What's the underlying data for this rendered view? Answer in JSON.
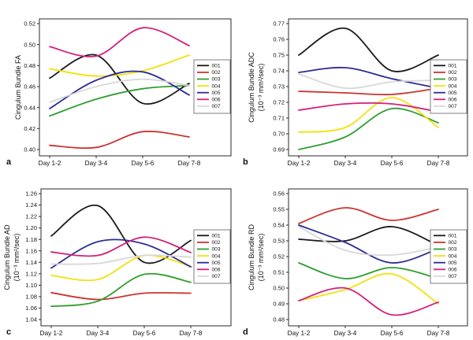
{
  "figure": {
    "background": "#ffffff",
    "frame_color": "#2a2a2a",
    "text_color": "#111111",
    "legend_border_color": "#7f7f7f",
    "legend_fill": "#ffffff"
  },
  "chart_data": [
    {
      "type": "line",
      "panel_letter": "a",
      "ylabel_lines": [
        "Cingulum Bundle FA"
      ],
      "categories": [
        "Day 1-2",
        "Day 3-4",
        "Day 5-6",
        "Day 7-8"
      ],
      "ylim": [
        0.4,
        0.52
      ],
      "ytick_step": 0.02,
      "ytick_decimals": 2,
      "grid": false,
      "legend_position": "right",
      "series": [
        {
          "name": "001",
          "color": "#1a1a1a",
          "values": [
            0.468,
            0.49,
            0.444,
            0.463
          ]
        },
        {
          "name": "002",
          "color": "#cd3232",
          "values": [
            0.404,
            0.402,
            0.417,
            0.412
          ]
        },
        {
          "name": "003",
          "color": "#2f9e2f",
          "values": [
            0.432,
            0.448,
            0.458,
            0.461
          ]
        },
        {
          "name": "004",
          "color": "#f3e10c",
          "values": [
            0.477,
            0.47,
            0.475,
            0.49
          ]
        },
        {
          "name": "005",
          "color": "#2c2c94",
          "values": [
            0.439,
            0.466,
            0.474,
            0.452
          ]
        },
        {
          "name": "006",
          "color": "#d61e7e",
          "values": [
            0.498,
            0.489,
            0.516,
            0.499
          ]
        },
        {
          "name": "007",
          "color": "#d8d8d8",
          "values": [
            0.445,
            0.46,
            0.467,
            0.461
          ]
        }
      ]
    },
    {
      "type": "line",
      "panel_letter": "b",
      "ylabel_lines": [
        "Cingulum Bundle ADC",
        "(10⁻³ mm²/sec)"
      ],
      "categories": [
        "Day 1-2",
        "Day 3-4",
        "Day 5-6",
        "Day 7-8"
      ],
      "ylim": [
        0.69,
        0.77
      ],
      "ytick_step": 0.01,
      "ytick_decimals": 2,
      "grid": false,
      "legend_position": "right",
      "series": [
        {
          "name": "001",
          "color": "#1a1a1a",
          "values": [
            0.75,
            0.767,
            0.74,
            0.75
          ]
        },
        {
          "name": "002",
          "color": "#cd3232",
          "values": [
            0.727,
            0.726,
            0.725,
            0.729
          ]
        },
        {
          "name": "003",
          "color": "#2f9e2f",
          "values": [
            0.69,
            0.698,
            0.716,
            0.707
          ]
        },
        {
          "name": "004",
          "color": "#f3e10c",
          "values": [
            0.701,
            0.704,
            0.723,
            0.704
          ]
        },
        {
          "name": "005",
          "color": "#2c2c94",
          "values": [
            0.739,
            0.742,
            0.735,
            0.729
          ]
        },
        {
          "name": "006",
          "color": "#d61e7e",
          "values": [
            0.715,
            0.719,
            0.719,
            0.714
          ]
        },
        {
          "name": "007",
          "color": "#d8d8d8",
          "values": [
            0.738,
            0.729,
            0.733,
            0.734
          ]
        }
      ]
    },
    {
      "type": "line",
      "panel_letter": "c",
      "ylabel_lines": [
        "Cingulum Bundle AD",
        "(10⁻³ mm²/sec)"
      ],
      "categories": [
        "Day 1-2",
        "Day 3-4",
        "Day 5-6",
        "Day 7-8"
      ],
      "ylim": [
        1.04,
        1.26
      ],
      "ytick_step": 0.02,
      "ytick_decimals": 2,
      "grid": false,
      "legend_position": "right",
      "series": [
        {
          "name": "001",
          "color": "#1a1a1a",
          "values": [
            1.186,
            1.239,
            1.14,
            1.178
          ]
        },
        {
          "name": "002",
          "color": "#cd3232",
          "values": [
            1.087,
            1.075,
            1.086,
            1.086
          ]
        },
        {
          "name": "003",
          "color": "#2f9e2f",
          "values": [
            1.063,
            1.072,
            1.119,
            1.105
          ]
        },
        {
          "name": "004",
          "color": "#f3e10c",
          "values": [
            1.117,
            1.11,
            1.152,
            1.133
          ]
        },
        {
          "name": "005",
          "color": "#2c2c94",
          "values": [
            1.13,
            1.176,
            1.172,
            1.132
          ]
        },
        {
          "name": "006",
          "color": "#d61e7e",
          "values": [
            1.158,
            1.152,
            1.184,
            1.157
          ]
        },
        {
          "name": "007",
          "color": "#d8d8d8",
          "values": [
            1.137,
            1.138,
            1.152,
            1.149
          ]
        }
      ]
    },
    {
      "type": "line",
      "panel_letter": "d",
      "ylabel_lines": [
        "Cingulum Bundle RD",
        "(10⁻³ mm²/sec)"
      ],
      "categories": [
        "Day 1-2",
        "Day 3-4",
        "Day 5-6",
        "Day 7-8"
      ],
      "ylim": [
        0.48,
        0.56
      ],
      "ytick_step": 0.01,
      "ytick_decimals": 2,
      "grid": false,
      "legend_position": "right",
      "series": [
        {
          "name": "001",
          "color": "#1a1a1a",
          "values": [
            0.531,
            0.53,
            0.539,
            0.527
          ]
        },
        {
          "name": "002",
          "color": "#cd3232",
          "values": [
            0.541,
            0.551,
            0.543,
            0.55
          ]
        },
        {
          "name": "003",
          "color": "#2f9e2f",
          "values": [
            0.516,
            0.506,
            0.513,
            0.506
          ]
        },
        {
          "name": "004",
          "color": "#f3e10c",
          "values": [
            0.492,
            0.499,
            0.509,
            0.49
          ]
        },
        {
          "name": "005",
          "color": "#2c2c94",
          "values": [
            0.54,
            0.529,
            0.516,
            0.525
          ]
        },
        {
          "name": "006",
          "color": "#d61e7e",
          "values": [
            0.492,
            0.5,
            0.483,
            0.491
          ]
        },
        {
          "name": "007",
          "color": "#d8d8d8",
          "values": [
            0.539,
            0.524,
            0.521,
            0.526
          ]
        }
      ]
    }
  ]
}
